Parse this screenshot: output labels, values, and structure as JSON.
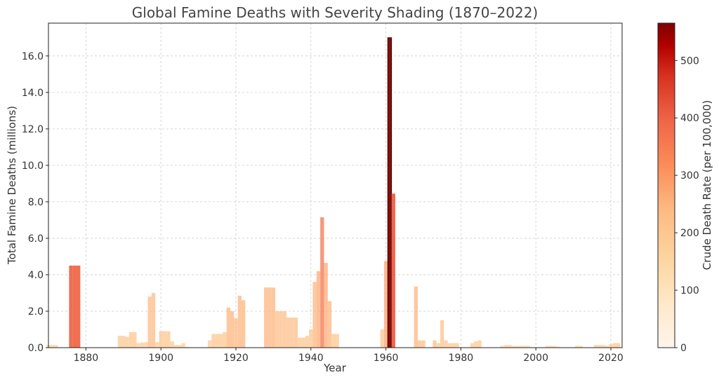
{
  "chart_data": {
    "type": "bar",
    "title": "Global Famine Deaths with Severity Shading (1870–2022)",
    "xlabel": "Year",
    "ylabel": "Total Famine Deaths (millions)",
    "colorbar_label": "Crude Death Rate (per 100,000)",
    "xlim": [
      1870,
      2023
    ],
    "ylim": [
      0,
      17.8
    ],
    "x_ticks": [
      1880,
      1900,
      1920,
      1940,
      1960,
      1980,
      2000,
      2020
    ],
    "y_ticks": [
      0.0,
      2.0,
      4.0,
      6.0,
      8.0,
      10.0,
      12.0,
      14.0,
      16.0
    ],
    "colorbar_range": [
      0,
      565
    ],
    "colorbar_ticks": [
      0,
      100,
      200,
      300,
      400,
      500
    ],
    "grid": true,
    "colormap": [
      "#fff5eb",
      "#fdd49e",
      "#fdbb84",
      "#fc8d59",
      "#ef6548",
      "#d7301f",
      "#990000",
      "#7f0000"
    ],
    "series": [
      {
        "x": [
          1870,
          1871,
          1872,
          1876,
          1877,
          1878,
          1889,
          1890,
          1891,
          1892,
          1893,
          1894,
          1895,
          1896,
          1897,
          1898,
          1899,
          1900,
          1901,
          1902,
          1903,
          1904,
          1905,
          1906,
          1907,
          1913,
          1914,
          1915,
          1916,
          1917,
          1918,
          1919,
          1920,
          1921,
          1922,
          1928,
          1929,
          1930,
          1931,
          1932,
          1933,
          1934,
          1935,
          1936,
          1937,
          1938,
          1939,
          1940,
          1941,
          1942,
          1943,
          1944,
          1945,
          1946,
          1947,
          1959,
          1960,
          1961,
          1962,
          1968,
          1969,
          1970,
          1973,
          1974,
          1975,
          1976,
          1977,
          1978,
          1979,
          1983,
          1984,
          1985,
          1991,
          1992,
          1993,
          1994,
          1995,
          1996,
          1997,
          1998,
          2003,
          2004,
          2005,
          2006,
          2011,
          2012,
          2016,
          2017,
          2018,
          2019,
          2020,
          2021,
          2022
        ],
        "y": [
          0.15,
          0.15,
          0.15,
          4.5,
          4.5,
          4.5,
          0.65,
          0.65,
          0.6,
          0.85,
          0.85,
          0.25,
          0.28,
          0.3,
          2.8,
          3.0,
          0.3,
          0.9,
          0.9,
          0.9,
          0.35,
          0.15,
          0.15,
          0.25,
          0.05,
          0.4,
          0.75,
          0.75,
          0.75,
          0.85,
          2.2,
          2.0,
          1.6,
          2.85,
          2.6,
          3.3,
          3.3,
          3.3,
          2.0,
          2.0,
          2.0,
          1.65,
          1.65,
          1.65,
          0.55,
          0.55,
          0.65,
          1.0,
          3.6,
          4.2,
          7.15,
          4.65,
          2.55,
          0.75,
          0.75,
          1.0,
          4.75,
          17.0,
          8.45,
          3.35,
          0.4,
          0.4,
          0.4,
          0.25,
          1.5,
          0.4,
          0.25,
          0.25,
          0.25,
          0.25,
          0.35,
          0.4,
          0.1,
          0.15,
          0.15,
          0.1,
          0.1,
          0.1,
          0.1,
          0.1,
          0.1,
          0.1,
          0.1,
          0.05,
          0.1,
          0.1,
          0.15,
          0.15,
          0.15,
          0.1,
          0.2,
          0.25,
          0.25
        ],
        "rate": [
          90,
          90,
          90,
          320,
          320,
          320,
          120,
          120,
          120,
          130,
          130,
          110,
          110,
          110,
          160,
          160,
          110,
          130,
          130,
          130,
          110,
          100,
          100,
          100,
          90,
          110,
          130,
          130,
          130,
          130,
          170,
          170,
          160,
          170,
          170,
          170,
          170,
          170,
          150,
          150,
          150,
          150,
          150,
          150,
          130,
          130,
          130,
          130,
          170,
          190,
          290,
          190,
          170,
          130,
          130,
          130,
          200,
          565,
          330,
          170,
          150,
          150,
          150,
          120,
          140,
          120,
          120,
          120,
          120,
          110,
          120,
          120,
          100,
          100,
          100,
          90,
          90,
          90,
          90,
          90,
          90,
          90,
          90,
          80,
          90,
          90,
          110,
          110,
          110,
          100,
          120,
          120,
          120
        ]
      }
    ]
  }
}
